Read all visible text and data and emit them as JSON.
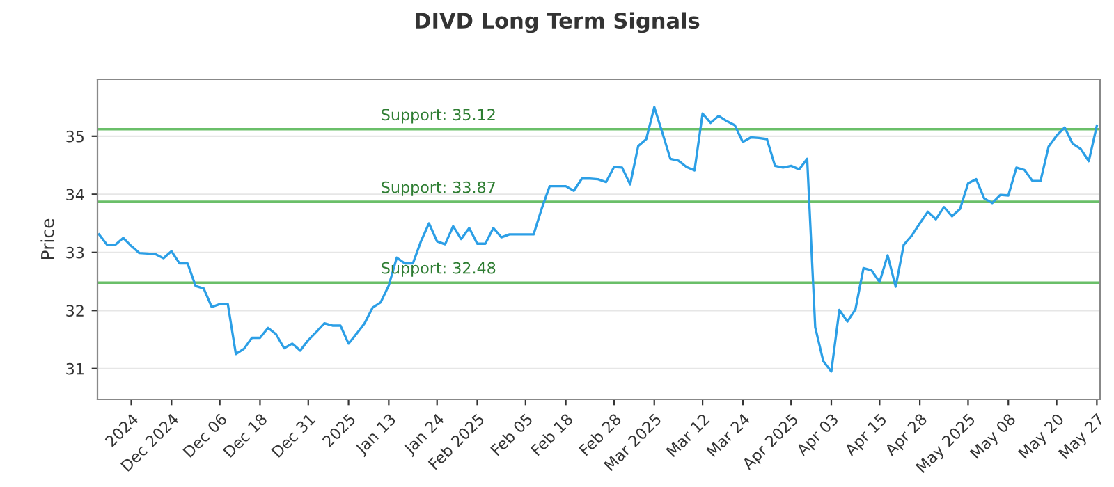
{
  "chart_data": {
    "type": "line",
    "title": "DIVD Long Term Signals",
    "ylabel": "Price",
    "categories": [
      null,
      null,
      null,
      null,
      "2024",
      null,
      null,
      null,
      null,
      "Dec 2024",
      null,
      null,
      null,
      null,
      null,
      "Dec 06",
      null,
      null,
      null,
      null,
      "Dec 18",
      null,
      null,
      null,
      null,
      null,
      "Dec 31",
      null,
      null,
      null,
      null,
      "2025",
      null,
      null,
      null,
      null,
      "Jan 13",
      null,
      null,
      null,
      null,
      null,
      "Jan 24",
      null,
      null,
      null,
      null,
      "Feb 2025",
      null,
      null,
      null,
      null,
      null,
      "Feb 05",
      null,
      null,
      null,
      null,
      "Feb 18",
      null,
      null,
      null,
      null,
      null,
      "Feb 28",
      null,
      null,
      null,
      null,
      "Mar 2025",
      null,
      null,
      null,
      null,
      null,
      "Mar 12",
      null,
      null,
      null,
      null,
      "Mar 24",
      null,
      null,
      null,
      null,
      null,
      "Apr 2025",
      null,
      null,
      null,
      null,
      "Apr 03",
      null,
      null,
      null,
      null,
      null,
      "Apr 15",
      null,
      null,
      null,
      null,
      "Apr 28",
      null,
      null,
      null,
      null,
      null,
      "May 2025",
      null,
      null,
      null,
      null,
      "May 08",
      null,
      null,
      null,
      null,
      null,
      "May 20",
      null,
      null,
      null,
      null,
      "May 27"
    ],
    "series": [
      {
        "color": "#2c9fe6",
        "values": [
          33.31,
          33.13,
          33.13,
          33.25,
          33.11,
          32.99,
          32.98,
          32.97,
          32.9,
          33.02,
          32.81,
          32.81,
          32.42,
          32.38,
          32.06,
          32.11,
          32.11,
          31.25,
          31.34,
          31.53,
          31.53,
          31.7,
          31.59,
          31.35,
          31.43,
          31.31,
          31.49,
          31.63,
          31.78,
          31.74,
          31.74,
          31.43,
          31.6,
          31.78,
          32.05,
          32.14,
          32.43,
          32.91,
          32.81,
          32.81,
          33.19,
          33.5,
          33.19,
          33.14,
          33.45,
          33.23,
          33.42,
          33.15,
          33.15,
          33.42,
          33.26,
          33.31,
          33.31,
          33.31,
          33.31,
          33.75,
          34.14,
          34.14,
          34.14,
          34.06,
          34.27,
          34.27,
          34.26,
          34.21,
          34.47,
          34.46,
          34.17,
          34.83,
          34.95,
          35.5,
          35.06,
          34.61,
          34.58,
          34.47,
          34.41,
          35.39,
          35.23,
          35.35,
          35.26,
          35.19,
          34.9,
          34.98,
          34.97,
          34.95,
          34.49,
          34.46,
          34.49,
          34.43,
          34.61,
          31.71,
          31.13,
          30.95,
          32.01,
          31.81,
          32.02,
          32.73,
          32.69,
          32.49,
          32.95,
          32.41,
          33.13,
          33.29,
          33.5,
          33.7,
          33.57,
          33.78,
          33.62,
          33.75,
          34.19,
          34.26,
          33.93,
          33.85,
          33.99,
          33.98,
          34.46,
          34.42,
          34.23,
          34.23,
          34.82,
          35.01,
          35.15,
          34.87,
          34.78,
          34.57,
          35.18
        ]
      }
    ],
    "ylim": [
      30.47,
      35.98
    ],
    "yticks": [
      31,
      32,
      33,
      34,
      35
    ],
    "grid": "y",
    "ref_lines": [
      {
        "axis": "y",
        "value": 35.12,
        "label": "Support: 35.12",
        "color": "#6abf69"
      },
      {
        "axis": "y",
        "value": 33.87,
        "label": "Support: 33.87",
        "color": "#6abf69"
      },
      {
        "axis": "y",
        "value": 32.48,
        "label": "Support: 32.48",
        "color": "#6abf69"
      }
    ]
  }
}
